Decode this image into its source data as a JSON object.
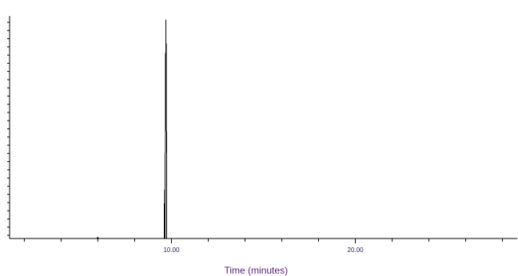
{
  "chart_data": {
    "type": "line",
    "title": "",
    "xlabel": "Time (minutes)",
    "ylabel": "",
    "xlim": [
      1.2,
      28.8
    ],
    "ylim": [
      0,
      100
    ],
    "x_tick_labels": [
      {
        "value": 10.0,
        "label": "10.00"
      },
      {
        "value": 20.0,
        "label": "20.00"
      }
    ],
    "x_minor_ticks": [
      2,
      4,
      6,
      8,
      12,
      14,
      16,
      18,
      22,
      24,
      26,
      28
    ],
    "y_minor_tick_count": 27,
    "grid": false,
    "legend": "none",
    "series": [
      {
        "x": [
          1.2,
          5.95,
          6.0,
          6.05,
          9.6,
          9.63,
          9.65,
          9.68,
          9.7,
          9.72,
          9.75,
          9.8,
          28.8
        ],
        "y": [
          0,
          0,
          0.5,
          0,
          0,
          22,
          0,
          76,
          99,
          74,
          0,
          0,
          0
        ]
      }
    ],
    "colors": {
      "axis": "#000000",
      "trace": "#000000",
      "label": "#5b1a7a",
      "tick_label": "#1f1b5c"
    }
  }
}
